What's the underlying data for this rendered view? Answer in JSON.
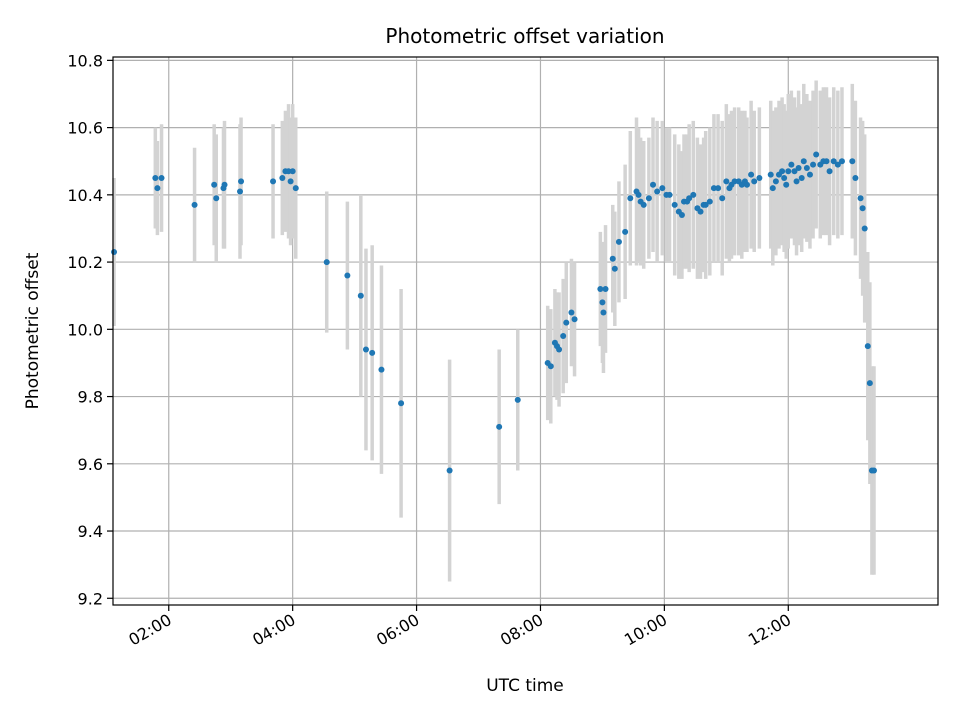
{
  "chart_data": {
    "type": "scatter",
    "title": "Photometric offset variation",
    "xlabel": "UTC time",
    "ylabel": "Photometric offset",
    "x_axis_kind": "time",
    "xlim": [
      "01:06",
      "14:25"
    ],
    "ylim": [
      9.18,
      10.81
    ],
    "grid": true,
    "x_ticks": [
      "02:00",
      "04:00",
      "06:00",
      "08:00",
      "10:00",
      "12:00"
    ],
    "y_ticks": [
      9.2,
      9.4,
      9.6,
      9.8,
      10.0,
      10.2,
      10.4,
      10.6,
      10.8
    ],
    "y_tick_labels": [
      "9.2",
      "9.4",
      "9.6",
      "9.8",
      "10.0",
      "10.2",
      "10.4",
      "10.6",
      "10.8"
    ],
    "colors": {
      "points": "#1f77b4",
      "errorbars": "#d3d3d3",
      "grid": "#b0b0b0",
      "axes": "#000000"
    },
    "series": [
      {
        "x": [
          "01:07",
          "01:47",
          "01:49",
          "01:53",
          "02:25",
          "02:44",
          "02:46",
          "02:53",
          "02:54",
          "03:09",
          "03:10",
          "03:41",
          "03:50",
          "03:53",
          "03:56",
          "03:58",
          "04:00",
          "04:03",
          "04:33",
          "04:53",
          "05:06",
          "05:11",
          "05:17",
          "05:26",
          "05:45",
          "06:32",
          "07:20",
          "07:38",
          "08:07",
          "08:10",
          "08:14",
          "08:16",
          "08:18",
          "08:22",
          "08:25",
          "08:30",
          "08:33",
          "08:58",
          "09:00",
          "09:01",
          "09:03",
          "09:10",
          "09:12",
          "09:16",
          "09:22",
          "09:27",
          "09:33",
          "09:35",
          "09:37",
          "09:40",
          "09:45",
          "09:49",
          "09:53",
          "09:58",
          "10:02",
          "10:05",
          "10:10",
          "10:14",
          "10:17",
          "10:19",
          "10:22",
          "10:24",
          "10:28",
          "10:32",
          "10:35",
          "10:38",
          "10:40",
          "10:44",
          "10:48",
          "10:52",
          "10:56",
          "11:00",
          "11:03",
          "11:05",
          "11:08",
          "11:12",
          "11:15",
          "11:18",
          "11:20",
          "11:24",
          "11:27",
          "11:32",
          "11:43",
          "11:45",
          "11:48",
          "11:51",
          "11:54",
          "11:56",
          "11:58",
          "12:00",
          "12:03",
          "12:06",
          "12:08",
          "12:10",
          "12:13",
          "12:15",
          "12:18",
          "12:21",
          "12:24",
          "12:27",
          "12:31",
          "12:34",
          "12:37",
          "12:40",
          "12:44",
          "12:48",
          "12:52",
          "13:02",
          "13:05",
          "13:10",
          "13:12",
          "13:14",
          "13:17",
          "13:19",
          "13:21",
          "13:23"
        ],
        "y": [
          10.23,
          10.45,
          10.42,
          10.45,
          10.37,
          10.43,
          10.39,
          10.42,
          10.43,
          10.41,
          10.44,
          10.44,
          10.45,
          10.47,
          10.47,
          10.44,
          10.47,
          10.42,
          10.2,
          10.16,
          10.1,
          9.94,
          9.93,
          9.88,
          9.78,
          9.58,
          9.71,
          9.79,
          9.9,
          9.89,
          9.96,
          9.95,
          9.94,
          9.98,
          10.02,
          10.05,
          10.03,
          10.12,
          10.08,
          10.05,
          10.12,
          10.21,
          10.18,
          10.26,
          10.29,
          10.39,
          10.41,
          10.4,
          10.38,
          10.37,
          10.39,
          10.43,
          10.41,
          10.42,
          10.4,
          10.4,
          10.37,
          10.35,
          10.34,
          10.38,
          10.38,
          10.39,
          10.4,
          10.36,
          10.35,
          10.37,
          10.37,
          10.38,
          10.42,
          10.42,
          10.39,
          10.44,
          10.42,
          10.43,
          10.44,
          10.44,
          10.43,
          10.44,
          10.43,
          10.46,
          10.44,
          10.45,
          10.46,
          10.42,
          10.44,
          10.46,
          10.47,
          10.45,
          10.43,
          10.47,
          10.49,
          10.47,
          10.44,
          10.48,
          10.45,
          10.5,
          10.48,
          10.46,
          10.49,
          10.52,
          10.49,
          10.5,
          10.5,
          10.47,
          10.5,
          10.49,
          10.5,
          10.5,
          10.45,
          10.39,
          10.36,
          10.3,
          9.95,
          9.84,
          9.58,
          9.58
        ],
        "err": [
          0.22,
          0.15,
          0.14,
          0.16,
          0.17,
          0.18,
          0.19,
          0.18,
          0.19,
          0.2,
          0.19,
          0.17,
          0.17,
          0.18,
          0.2,
          0.19,
          0.2,
          0.21,
          0.21,
          0.22,
          0.3,
          0.3,
          0.32,
          0.31,
          0.34,
          0.33,
          0.23,
          0.21,
          0.17,
          0.17,
          0.16,
          0.16,
          0.17,
          0.17,
          0.18,
          0.16,
          0.17,
          0.17,
          0.18,
          0.18,
          0.19,
          0.16,
          0.17,
          0.18,
          0.2,
          0.2,
          0.22,
          0.2,
          0.19,
          0.19,
          0.18,
          0.2,
          0.21,
          0.2,
          0.2,
          0.2,
          0.21,
          0.2,
          0.19,
          0.2,
          0.2,
          0.22,
          0.22,
          0.21,
          0.2,
          0.2,
          0.22,
          0.22,
          0.22,
          0.22,
          0.23,
          0.23,
          0.22,
          0.22,
          0.22,
          0.22,
          0.22,
          0.21,
          0.2,
          0.22,
          0.21,
          0.21,
          0.22,
          0.23,
          0.22,
          0.22,
          0.22,
          0.22,
          0.22,
          0.23,
          0.22,
          0.22,
          0.22,
          0.23,
          0.22,
          0.23,
          0.22,
          0.22,
          0.22,
          0.22,
          0.22,
          0.22,
          0.22,
          0.22,
          0.22,
          0.22,
          0.22,
          0.23,
          0.23,
          0.24,
          0.26,
          0.28,
          0.28,
          0.3,
          0.31,
          0.31
        ]
      }
    ]
  }
}
